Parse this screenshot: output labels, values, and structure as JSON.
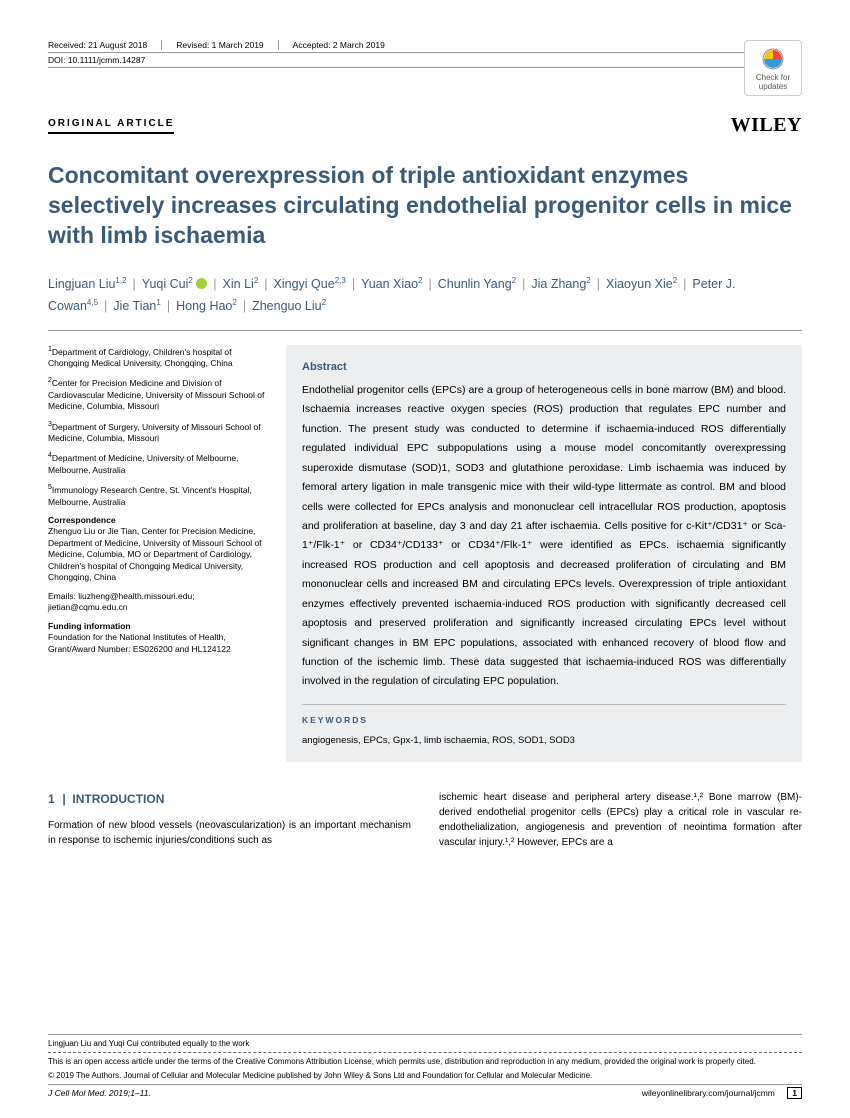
{
  "meta": {
    "received": "Received: 21 August 2018",
    "revised": "Revised: 1 March 2019",
    "accepted": "Accepted: 2 March 2019",
    "doi": "DOI: 10.1111/jcmm.14287"
  },
  "checkUpdates": {
    "line1": "Check for",
    "line2": "updates"
  },
  "articleType": "ORIGINAL ARTICLE",
  "publisher": "WILEY",
  "title": "Concomitant overexpression of triple antioxidant enzymes selectively increases circulating endothelial progenitor cells in mice with limb ischaemia",
  "authors": [
    {
      "name": "Lingjuan Liu",
      "sup": "1,2"
    },
    {
      "name": "Yuqi Cui",
      "sup": "2",
      "orcid": true
    },
    {
      "name": "Xin Li",
      "sup": "2"
    },
    {
      "name": "Xingyi Que",
      "sup": "2,3"
    },
    {
      "name": "Yuan Xiao",
      "sup": "2"
    },
    {
      "name": "Chunlin Yang",
      "sup": "2"
    },
    {
      "name": "Jia Zhang",
      "sup": "2"
    },
    {
      "name": "Xiaoyun Xie",
      "sup": "2"
    },
    {
      "name": "Peter J. Cowan",
      "sup": "4,5"
    },
    {
      "name": "Jie Tian",
      "sup": "1"
    },
    {
      "name": "Hong Hao",
      "sup": "2"
    },
    {
      "name": "Zhenguo Liu",
      "sup": "2"
    }
  ],
  "affiliations": [
    {
      "sup": "1",
      "text": "Department of Cardiology, Children's hospital of Chongqing Medical University, Chongqing, China"
    },
    {
      "sup": "2",
      "text": "Center for Precision Medicine and Division of Cardiovascular Medicine, University of Missouri School of Medicine, Columbia, Missouri"
    },
    {
      "sup": "3",
      "text": "Department of Surgery, University of Missouri School of Medicine, Columbia, Missouri"
    },
    {
      "sup": "4",
      "text": "Department of Medicine, University of Melbourne, Melbourne, Australia"
    },
    {
      "sup": "5",
      "text": "Immunology Research Centre, St. Vincent's Hospital, Melbourne, Australia"
    }
  ],
  "correspondence": {
    "head": "Correspondence",
    "text": "Zhenguo Liu or Jie Tian, Center for Precision Medicine, Department of Medicine, University of Missouri School of Medicine, Columbia, MO or Department of Cardiology, Children's hospital of Chongqing Medical University, Chongqing, China",
    "emails": "Emails: liuzheng@health.missouri.edu; jietian@cqmu.edu.cn"
  },
  "funding": {
    "head": "Funding information",
    "text": "Foundation for the National Institutes of Health, Grant/Award Number: ES026200 and HL124122"
  },
  "abstract": {
    "head": "Abstract",
    "text": "Endothelial progenitor cells (EPCs) are a group of heterogeneous cells in bone marrow (BM) and blood. Ischaemia increases reactive oxygen species (ROS) production that regulates EPC number and function. The present study was conducted to determine if ischaemia-induced ROS differentially regulated individual EPC subpopulations using a mouse model concomitantly overexpressing superoxide dismutase (SOD)1, SOD3 and glutathione peroxidase. Limb ischaemia was induced by femoral artery ligation in male transgenic mice with their wild-type littermate as control. BM and blood cells were collected for EPCs analysis and mononuclear cell intracellular ROS production, apoptosis and proliferation at baseline, day 3 and day 21 after ischaemia. Cells positive for c-Kit⁺/CD31⁺ or Sca-1⁺/Flk-1⁺ or CD34⁺/CD133⁺ or CD34⁺/Flk-1⁺ were identified as EPCs. ischaemia significantly increased ROS production and cell apoptosis and decreased proliferation of circulating and BM mononuclear cells and increased BM and circulating EPCs levels. Overexpression of triple antioxidant enzymes effectively prevented ischaemia-induced ROS production with significantly decreased cell apoptosis and preserved proliferation and significantly increased circulating EPCs level without significant changes in BM EPC populations, associated with enhanced recovery of blood flow and function of the ischemic limb. These data suggested that ischaemia-induced ROS was differentially involved in the regulation of circulating EPC population."
  },
  "keywords": {
    "head": "KEYWORDS",
    "text": "angiogenesis, EPCs, Gpx-1, limb ischaemia, ROS, SOD1, SOD3"
  },
  "intro": {
    "head_num": "1",
    "head_sep": "|",
    "head_text": "INTRODUCTION",
    "col1": "Formation of new blood vessels (neovascularization) is an important mechanism in response to ischemic injuries/conditions such as",
    "col2": "ischemic heart disease and peripheral artery disease.¹,² Bone marrow (BM)-derived endothelial progenitor cells (EPCs) play a critical role in vascular re-endothelialization, angiogenesis and prevention of neointima formation after vascular injury.¹,² However, EPCs are a"
  },
  "footer": {
    "contrib": "Lingjuan Liu and Yuqi Cui contributed equally to the work",
    "license": "This is an open access article under the terms of the Creative Commons Attribution License, which permits use, distribution and reproduction in any medium, provided the original work is properly cited.",
    "copyright": "© 2019 The Authors. Journal of Cellular and Molecular Medicine published by John Wiley & Sons Ltd and Foundation for Cellular and Molecular Medicine.",
    "journal": "J Cell Mol Med. 2019;1–11.",
    "url": "wileyonlinelibrary.com/journal/jcmm",
    "page": "1"
  }
}
